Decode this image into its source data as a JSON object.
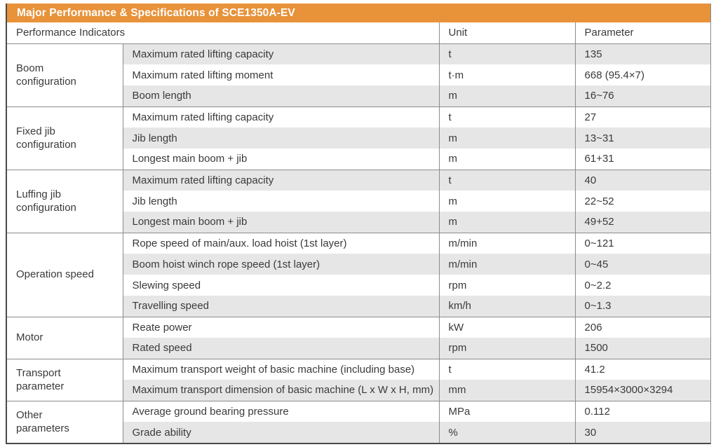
{
  "title": "Major Performance & Specifications of SCE1350A-EV",
  "columns": {
    "indicators": "Performance Indicators",
    "unit": "Unit",
    "parameter": "Parameter"
  },
  "colors": {
    "accent": "#e8923a",
    "row_shade": "#e6e6e6",
    "grid_line": "#8c8c8c",
    "outer_border": "#4a4a4a",
    "text": "#3a3a3a",
    "title_text": "#ffffff"
  },
  "groups": [
    {
      "id": "boom-configuration",
      "label": "Boom\nconfiguration",
      "rows": [
        {
          "indicator": "Maximum rated lifting capacity",
          "unit": "t",
          "parameter": "135"
        },
        {
          "indicator": "Maximum rated lifting moment",
          "unit": "t·m",
          "parameter": "668 (95.4×7)"
        },
        {
          "indicator": "Boom length",
          "unit": "m",
          "parameter": "16~76"
        }
      ]
    },
    {
      "id": "fixed-jib-configuration",
      "label": "Fixed jib\nconfiguration",
      "rows": [
        {
          "indicator": "Maximum rated lifting capacity",
          "unit": "t",
          "parameter": "27"
        },
        {
          "indicator": "Jib length",
          "unit": "m",
          "parameter": "13~31"
        },
        {
          "indicator": "Longest main boom + jib",
          "unit": "m",
          "parameter": "61+31"
        }
      ]
    },
    {
      "id": "luffing-jib-configuration",
      "label": "Luffing jib\nconfiguration",
      "rows": [
        {
          "indicator": "Maximum rated lifting capacity",
          "unit": "t",
          "parameter": "40"
        },
        {
          "indicator": "Jib length",
          "unit": "m",
          "parameter": "22~52"
        },
        {
          "indicator": "Longest main boom + jib",
          "unit": "m",
          "parameter": "49+52"
        }
      ]
    },
    {
      "id": "operation-speed",
      "label": "Operation speed",
      "rows": [
        {
          "indicator": "Rope speed of main/aux. load hoist (1st layer)",
          "unit": "m/min",
          "parameter": "0~121"
        },
        {
          "indicator": "Boom hoist winch rope speed (1st layer)",
          "unit": "m/min",
          "parameter": "0~45"
        },
        {
          "indicator": "Slewing speed",
          "unit": "rpm",
          "parameter": "0~2.2"
        },
        {
          "indicator": "Travelling speed",
          "unit": "km/h",
          "parameter": "0~1.3"
        }
      ]
    },
    {
      "id": "motor",
      "label": "Motor",
      "rows": [
        {
          "indicator": "Reate power",
          "unit": "kW",
          "parameter": "206"
        },
        {
          "indicator": "Rated speed",
          "unit": "rpm",
          "parameter": "1500"
        }
      ]
    },
    {
      "id": "transport-parameter",
      "label": "Transport\nparameter",
      "rows": [
        {
          "indicator": "Maximum transport weight of basic machine (including base)",
          "unit": "t",
          "parameter": "41.2"
        },
        {
          "indicator": "Maximum transport dimension of basic machine (L x W x H, mm)",
          "unit": "mm",
          "parameter": "15954×3000×3294"
        }
      ]
    },
    {
      "id": "other-parameters",
      "label": "Other\nparameters",
      "rows": [
        {
          "indicator": "Average ground bearing pressure",
          "unit": "MPa",
          "parameter": "0.112"
        },
        {
          "indicator": "Grade ability",
          "unit": "%",
          "parameter": "30"
        }
      ]
    }
  ]
}
